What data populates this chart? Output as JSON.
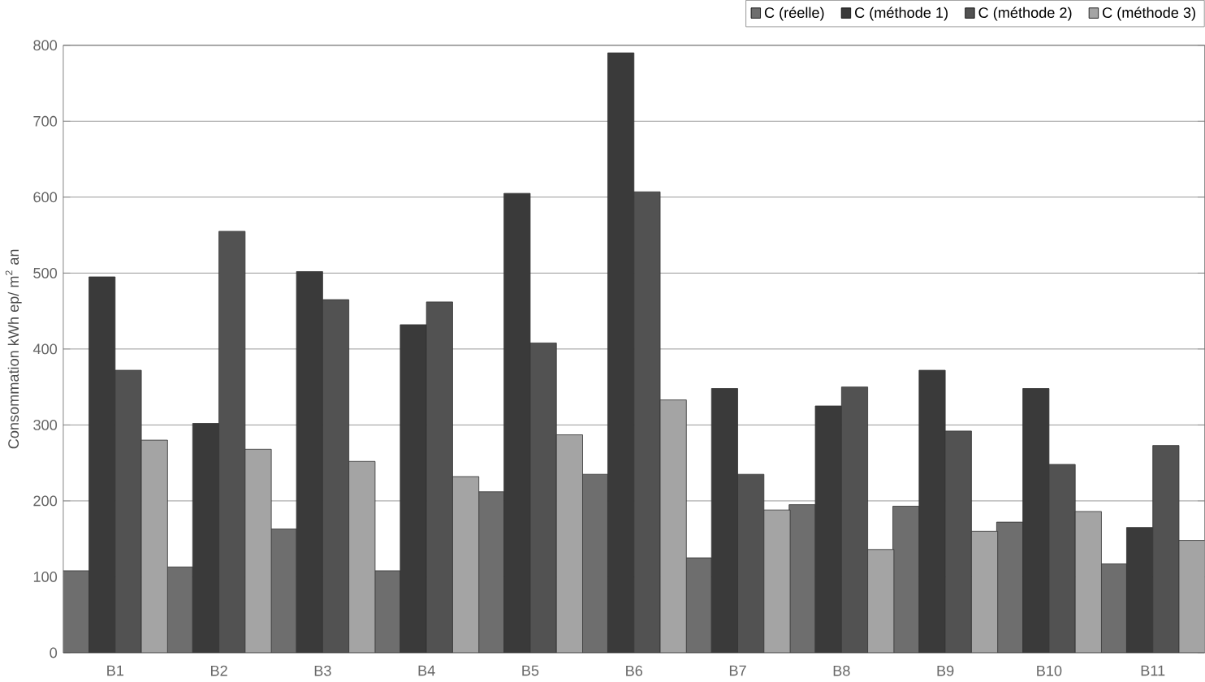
{
  "chart_data": {
    "type": "bar",
    "ylabel": "Consommation kWh ep/ m$^{2}$ an",
    "categories": [
      "B1",
      "B2",
      "B3",
      "B4",
      "B5",
      "B6",
      "B7",
      "B8",
      "B9",
      "B10",
      "B11"
    ],
    "series": [
      {
        "name": "C (réelle)",
        "color": "#6e6e6e",
        "values": [
          108,
          113,
          163,
          108,
          212,
          235,
          125,
          195,
          193,
          172,
          117
        ]
      },
      {
        "name": "C (méthode 1)",
        "color": "#3a3a3a",
        "values": [
          495,
          302,
          502,
          432,
          605,
          790,
          348,
          325,
          372,
          348,
          165
        ]
      },
      {
        "name": "C (méthode 2)",
        "color": "#525252",
        "values": [
          372,
          555,
          465,
          462,
          408,
          607,
          235,
          350,
          292,
          248,
          273
        ]
      },
      {
        "name": "C (méthode 3)",
        "color": "#a4a4a4",
        "values": [
          280,
          268,
          252,
          232,
          287,
          333,
          188,
          136,
          160,
          186,
          148
        ]
      }
    ],
    "ylim": [
      0,
      800
    ],
    "yticks": [
      0,
      100,
      200,
      300,
      400,
      500,
      600,
      700,
      800
    ],
    "grid": "y",
    "legend": "top right"
  }
}
